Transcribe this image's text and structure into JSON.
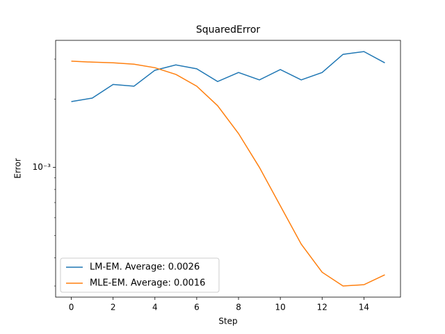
{
  "chart_data": {
    "type": "line",
    "title": "SquaredError",
    "xlabel": "Step",
    "ylabel": "Error",
    "x": [
      0,
      1,
      2,
      3,
      4,
      5,
      6,
      7,
      8,
      9,
      10,
      11,
      12,
      13,
      14,
      15
    ],
    "series": [
      {
        "name": "LM-EM. Average: 0.0026",
        "color": "#1f77b4",
        "values": [
          0.00195,
          0.00202,
          0.00232,
          0.00228,
          0.00268,
          0.00283,
          0.00272,
          0.00239,
          0.00262,
          0.00243,
          0.0027,
          0.00243,
          0.00262,
          0.00315,
          0.00324,
          0.00289
        ]
      },
      {
        "name": "MLE-EM. Average: 0.0016",
        "color": "#ff7f0e",
        "values": [
          0.00294,
          0.00291,
          0.00289,
          0.00285,
          0.00275,
          0.00257,
          0.00228,
          0.00187,
          0.00141,
          0.001,
          0.000677,
          0.000459,
          0.000345,
          0.0003,
          0.000304,
          0.000336
        ]
      }
    ],
    "xlim": [
      -0.75,
      15.75
    ],
    "xticks": [
      0,
      2,
      4,
      6,
      8,
      10,
      12,
      14
    ],
    "ylim": [
      0.000268,
      0.00363
    ],
    "ylog": true,
    "yticks": [
      {
        "value": 0.001,
        "label": "10⁻³"
      }
    ],
    "yminorticks": [
      0.0003,
      0.0004,
      0.0005,
      0.0006,
      0.0007,
      0.0008,
      0.0009,
      0.002,
      0.003
    ],
    "legend": "lower left"
  }
}
